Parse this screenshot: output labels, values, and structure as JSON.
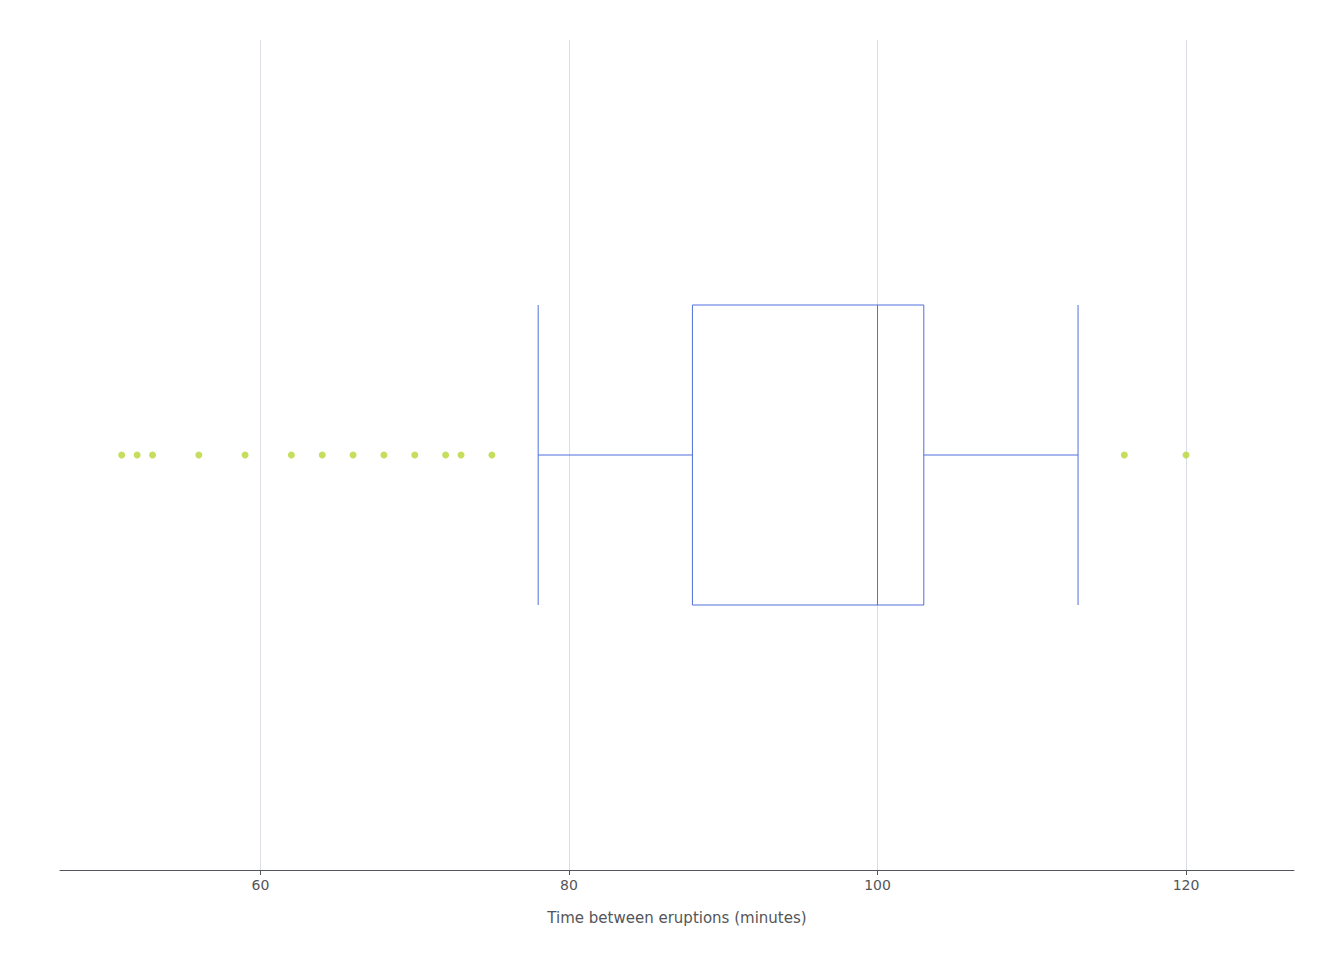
{
  "chart_data": {
    "type": "boxplot",
    "xlabel": "Time between eruptions (minutes)",
    "box": {
      "whisker_low": 78,
      "q1": 88,
      "median": 100,
      "q3": 103,
      "whisker_high": 113
    },
    "outliers": [
      51,
      52,
      53,
      56,
      59,
      62,
      64,
      66,
      68,
      70,
      72,
      73,
      75,
      116,
      120
    ],
    "xlim": [
      47,
      127
    ],
    "xticks": [
      60,
      80,
      100,
      120
    ],
    "grid": true
  }
}
